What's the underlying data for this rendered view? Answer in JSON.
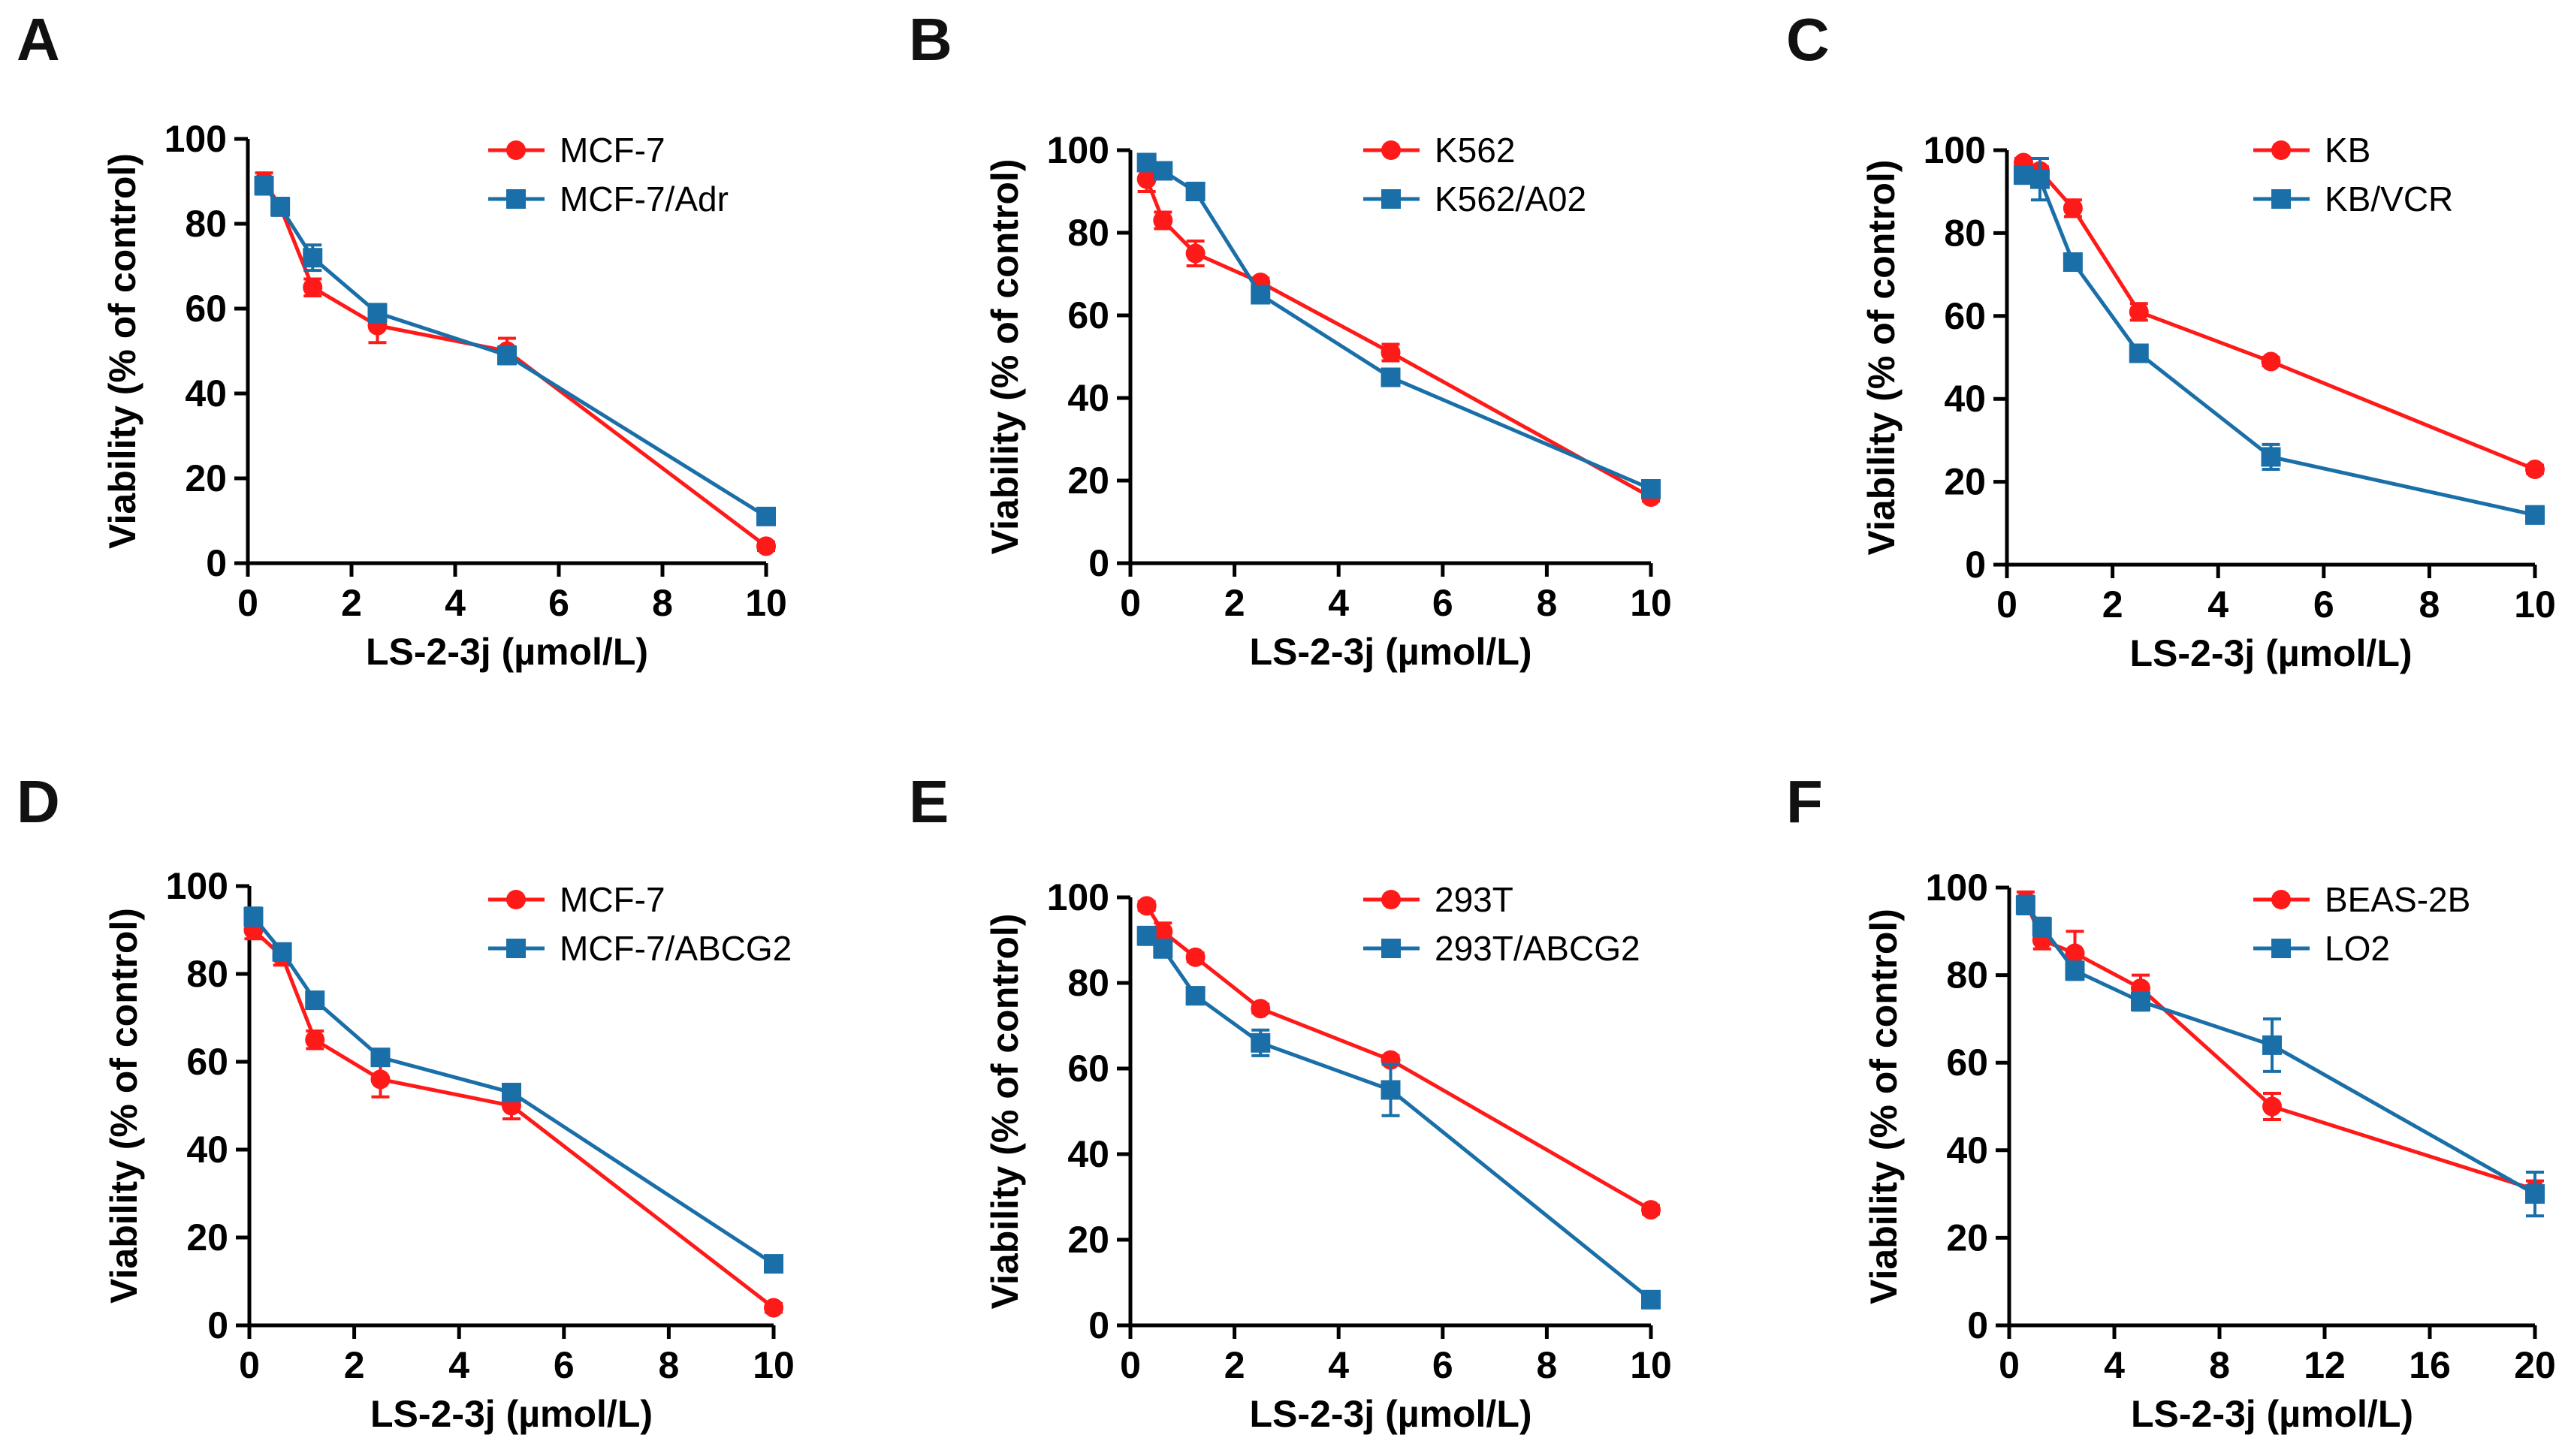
{
  "colors": {
    "red": "#ff1a1a",
    "blue": "#1a6fa8"
  },
  "chart_data": [
    {
      "panel": "A",
      "type": "line",
      "xlabel": "LS-2-3j (µmol/L)",
      "ylabel": "Viability (% of control)",
      "xlim": [
        0,
        10
      ],
      "ylim": [
        0,
        100
      ],
      "xticks": [
        0,
        2,
        4,
        6,
        8,
        10
      ],
      "yticks": [
        0,
        20,
        40,
        60,
        80,
        100
      ],
      "series": [
        {
          "name": "MCF-7",
          "color": "red",
          "marker": "circle",
          "x": [
            0.3125,
            0.625,
            1.25,
            2.5,
            5,
            10
          ],
          "y": [
            90,
            84,
            65,
            56,
            50,
            4
          ],
          "err": [
            2,
            2,
            2,
            4,
            3,
            1
          ]
        },
        {
          "name": "MCF-7/Adr",
          "color": "blue",
          "marker": "square",
          "x": [
            0.3125,
            0.625,
            1.25,
            2.5,
            5,
            10
          ],
          "y": [
            89,
            84,
            72,
            59,
            49,
            11
          ],
          "err": [
            2,
            2,
            3,
            2,
            2,
            1
          ]
        }
      ]
    },
    {
      "panel": "B",
      "type": "line",
      "xlabel": "LS-2-3j (µmol/L)",
      "ylabel": "Viability (% of control)",
      "xlim": [
        0,
        10
      ],
      "ylim": [
        0,
        100
      ],
      "xticks": [
        0,
        2,
        4,
        6,
        8,
        10
      ],
      "yticks": [
        0,
        20,
        40,
        60,
        80,
        100
      ],
      "series": [
        {
          "name": "K562",
          "color": "red",
          "marker": "circle",
          "x": [
            0.3125,
            0.625,
            1.25,
            2.5,
            5,
            10
          ],
          "y": [
            93,
            83,
            75,
            68,
            51,
            16
          ],
          "err": [
            3,
            2,
            3,
            1,
            2,
            1
          ]
        },
        {
          "name": "K562/A02",
          "color": "blue",
          "marker": "square",
          "x": [
            0.3125,
            0.625,
            1.25,
            2.5,
            5,
            10
          ],
          "y": [
            97,
            95,
            90,
            65,
            45,
            18
          ],
          "err": [
            1,
            1,
            1,
            2,
            2,
            1
          ]
        }
      ]
    },
    {
      "panel": "C",
      "type": "line",
      "xlabel": "LS-2-3j (µmol/L)",
      "ylabel": "Viability (% of control)",
      "xlim": [
        0,
        10
      ],
      "ylim": [
        0,
        100
      ],
      "xticks": [
        0,
        2,
        4,
        6,
        8,
        10
      ],
      "yticks": [
        0,
        20,
        40,
        60,
        80,
        100
      ],
      "series": [
        {
          "name": "KB",
          "color": "red",
          "marker": "circle",
          "x": [
            0.3125,
            0.625,
            1.25,
            2.5,
            5,
            10
          ],
          "y": [
            97,
            95,
            86,
            61,
            49,
            23
          ],
          "err": [
            1,
            1,
            2,
            2,
            1,
            1
          ]
        },
        {
          "name": "KB/VCR",
          "color": "blue",
          "marker": "square",
          "x": [
            0.3125,
            0.625,
            1.25,
            2.5,
            5,
            10
          ],
          "y": [
            94,
            93,
            73,
            51,
            26,
            12
          ],
          "err": [
            2,
            5,
            1,
            1,
            3,
            2
          ]
        }
      ]
    },
    {
      "panel": "D",
      "type": "line",
      "xlabel": "LS-2-3j (µmol/L)",
      "ylabel": "Viability (% of control)",
      "xlim": [
        0,
        10
      ],
      "ylim": [
        0,
        100
      ],
      "xticks": [
        0,
        2,
        4,
        6,
        8,
        10
      ],
      "yticks": [
        0,
        20,
        40,
        60,
        80,
        100
      ],
      "series": [
        {
          "name": "MCF-7",
          "color": "red",
          "marker": "circle",
          "x": [
            0.078,
            0.625,
            1.25,
            2.5,
            5,
            10
          ],
          "y": [
            90,
            84,
            65,
            56,
            50,
            4
          ],
          "err": [
            2,
            2,
            2,
            4,
            3,
            1
          ]
        },
        {
          "name": "MCF-7/ABCG2",
          "color": "blue",
          "marker": "square",
          "x": [
            0.078,
            0.625,
            1.25,
            2.5,
            5,
            10
          ],
          "y": [
            93,
            85,
            74,
            61,
            53,
            14
          ],
          "err": [
            2,
            1,
            1,
            1,
            1,
            1
          ]
        }
      ]
    },
    {
      "panel": "E",
      "type": "line",
      "xlabel": "LS-2-3j (µmol/L)",
      "ylabel": "Viability (% of control)",
      "xlim": [
        0,
        10
      ],
      "ylim": [
        0,
        100
      ],
      "xticks": [
        0,
        2,
        4,
        6,
        8,
        10
      ],
      "yticks": [
        0,
        20,
        40,
        60,
        80,
        100
      ],
      "series": [
        {
          "name": "293T",
          "color": "red",
          "marker": "circle",
          "x": [
            0.3125,
            0.625,
            1.25,
            2.5,
            5,
            10
          ],
          "y": [
            98,
            92,
            86,
            74,
            62,
            27
          ],
          "err": [
            1,
            2,
            1,
            1,
            1,
            1
          ]
        },
        {
          "name": "293T/ABCG2",
          "color": "blue",
          "marker": "square",
          "x": [
            0.3125,
            0.625,
            1.25,
            2.5,
            5,
            10
          ],
          "y": [
            91,
            88,
            77,
            66,
            55,
            6
          ],
          "err": [
            2,
            2,
            1,
            3,
            6,
            1
          ]
        }
      ]
    },
    {
      "panel": "F",
      "type": "line",
      "xlabel": "LS-2-3j (µmol/L)",
      "ylabel": "Viability (% of control)",
      "xlim": [
        0,
        20
      ],
      "ylim": [
        0,
        100
      ],
      "xticks": [
        0,
        4,
        8,
        12,
        16,
        20
      ],
      "yticks": [
        0,
        20,
        40,
        60,
        80,
        100
      ],
      "series": [
        {
          "name": "BEAS-2B",
          "color": "red",
          "marker": "circle",
          "x": [
            0.625,
            1.25,
            2.5,
            5,
            10,
            20
          ],
          "y": [
            97,
            88,
            85,
            77,
            50,
            31
          ],
          "err": [
            2,
            2,
            5,
            3,
            3,
            2
          ]
        },
        {
          "name": "LO2",
          "color": "blue",
          "marker": "square",
          "x": [
            0.625,
            1.25,
            2.5,
            5,
            10,
            20
          ],
          "y": [
            96,
            91,
            81,
            74,
            64,
            30
          ],
          "err": [
            2,
            2,
            2,
            2,
            6,
            5
          ]
        }
      ]
    }
  ]
}
